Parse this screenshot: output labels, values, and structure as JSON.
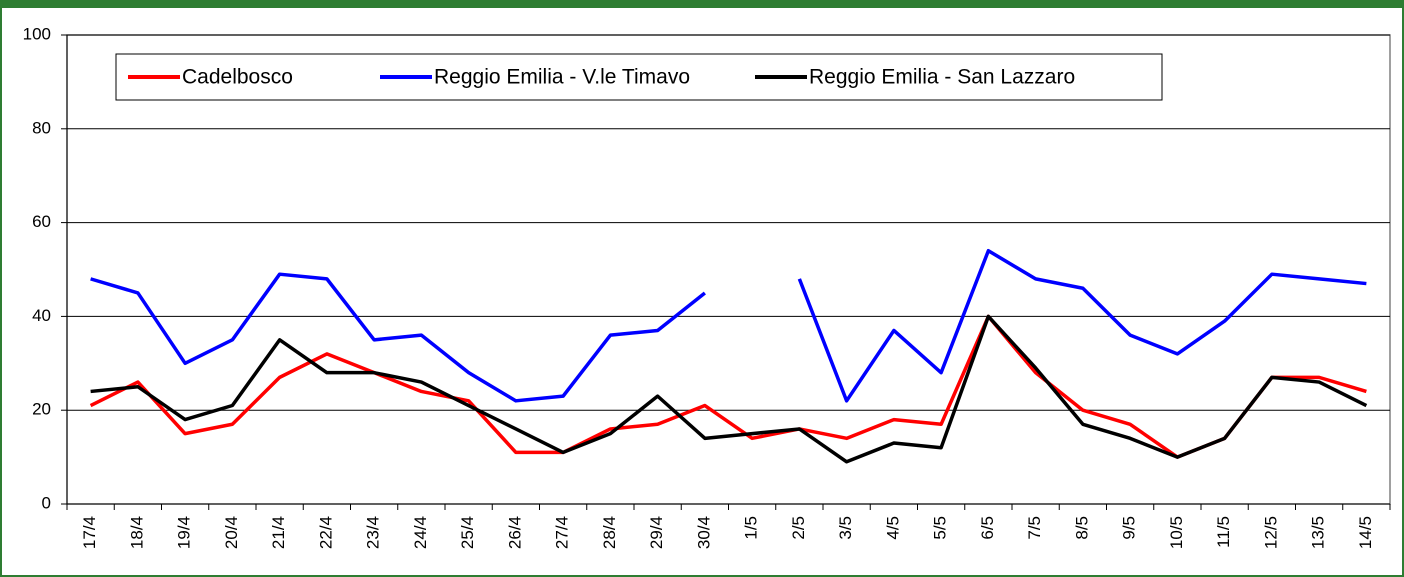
{
  "chart_data": {
    "type": "line",
    "categories": [
      "17/4",
      "18/4",
      "19/4",
      "20/4",
      "21/4",
      "22/4",
      "23/4",
      "24/4",
      "25/4",
      "26/4",
      "27/4",
      "28/4",
      "29/4",
      "30/4",
      "1/5",
      "2/5",
      "3/5",
      "4/5",
      "5/5",
      "6/5",
      "7/5",
      "8/5",
      "9/5",
      "10/5",
      "11/5",
      "12/5",
      "13/5",
      "14/5"
    ],
    "series": [
      {
        "name": "Cadelbosco",
        "color": "#ff0000",
        "values": [
          21,
          26,
          15,
          17,
          27,
          32,
          28,
          24,
          22,
          11,
          11,
          16,
          17,
          21,
          14,
          16,
          14,
          18,
          17,
          40,
          28,
          20,
          17,
          10,
          14,
          27,
          27,
          24
        ]
      },
      {
        "name": "Reggio Emilia - V.le Timavo",
        "color": "#0000ff",
        "values": [
          48,
          45,
          30,
          35,
          49,
          48,
          35,
          36,
          28,
          22,
          23,
          36,
          37,
          45,
          null,
          48,
          22,
          37,
          28,
          54,
          48,
          46,
          36,
          32,
          39,
          49,
          48,
          47
        ]
      },
      {
        "name": "Reggio Emilia - San Lazzaro",
        "color": "#000000",
        "values": [
          24,
          25,
          18,
          21,
          35,
          28,
          28,
          26,
          21,
          16,
          11,
          15,
          23,
          14,
          15,
          16,
          9,
          13,
          12,
          40,
          29,
          17,
          14,
          10,
          14,
          27,
          26,
          21
        ]
      }
    ],
    "ylim": [
      0,
      100
    ],
    "yticks": [
      0,
      20,
      40,
      60,
      80,
      100
    ],
    "grid": true,
    "legend": "top"
  }
}
